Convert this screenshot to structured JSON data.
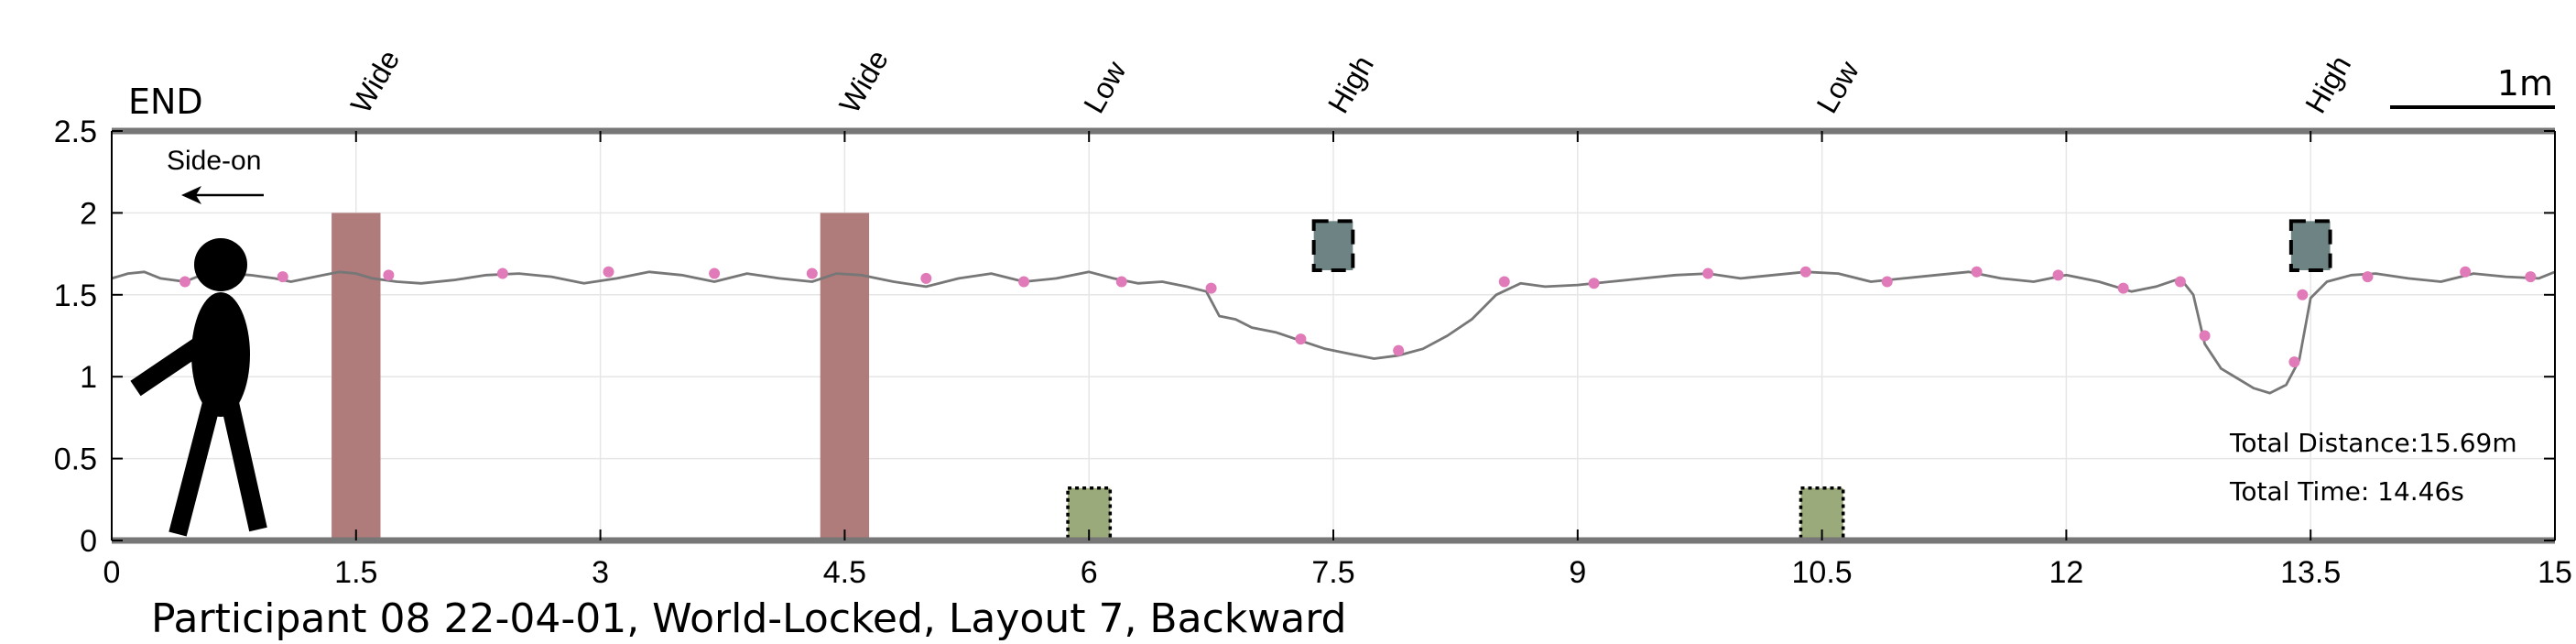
{
  "chart_data": {
    "type": "line",
    "title": "",
    "xlabel": "",
    "ylabel": "",
    "xlim": [
      0,
      15
    ],
    "ylim": [
      0,
      2.5
    ],
    "x_ticks": [
      0,
      1.5,
      3,
      4.5,
      6,
      7.5,
      9,
      10.5,
      12,
      13.5,
      15
    ],
    "x_tick_labels": [
      "0",
      "1.5",
      "3",
      "4.5",
      "6",
      "7.5",
      "9",
      "10.5",
      "12",
      "13.5",
      "15"
    ],
    "y_ticks": [
      0,
      0.5,
      1,
      1.5,
      2,
      2.5
    ],
    "y_tick_labels": [
      "0",
      "0.5",
      "1",
      "1.5",
      "2",
      "2.5"
    ],
    "grid": true,
    "end_label": "END",
    "view_label": "Side-on",
    "scale_bar_label": "1m",
    "caption": "Participant 08 22-04-01, World-Locked, Layout 7, Backward",
    "stats": {
      "distance_text": "Total Distance:15.69m",
      "time_text": "Total Time: 14.46s"
    },
    "obstacle_labels": [
      {
        "x": 1.5,
        "text": "Wide"
      },
      {
        "x": 4.5,
        "text": "Wide"
      },
      {
        "x": 6.0,
        "text": "Low"
      },
      {
        "x": 7.5,
        "text": "High"
      },
      {
        "x": 10.5,
        "text": "Low"
      },
      {
        "x": 13.5,
        "text": "High"
      }
    ],
    "obstacles": [
      {
        "kind": "wide",
        "x0": 1.35,
        "x1": 1.65,
        "y0": 0,
        "y1": 2.0,
        "color": "#b07b7b"
      },
      {
        "kind": "wide",
        "x0": 4.35,
        "x1": 4.65,
        "y0": 0,
        "y1": 2.0,
        "color": "#b07b7b"
      },
      {
        "kind": "low",
        "x0": 5.87,
        "x1": 6.13,
        "y0": 0,
        "y1": 0.32,
        "color": "#9aaa7a"
      },
      {
        "kind": "high",
        "x0": 7.38,
        "x1": 7.62,
        "y0": 1.65,
        "y1": 1.95,
        "color": "#6e8484"
      },
      {
        "kind": "low",
        "x0": 10.37,
        "x1": 10.63,
        "y0": 0,
        "y1": 0.32,
        "color": "#9aaa7a"
      },
      {
        "kind": "high",
        "x0": 13.38,
        "x1": 13.62,
        "y0": 1.65,
        "y1": 1.95,
        "color": "#6e8484"
      }
    ],
    "series": [
      {
        "color": "#777777",
        "x": [
          0,
          0.1,
          0.2,
          0.3,
          0.45,
          0.55,
          0.7,
          0.85,
          1.0,
          1.1,
          1.2,
          1.3,
          1.4,
          1.5,
          1.6,
          1.75,
          1.9,
          2.1,
          2.3,
          2.5,
          2.7,
          2.9,
          3.1,
          3.3,
          3.5,
          3.7,
          3.9,
          4.1,
          4.3,
          4.45,
          4.6,
          4.8,
          5.0,
          5.2,
          5.4,
          5.6,
          5.8,
          6.0,
          6.15,
          6.3,
          6.45,
          6.6,
          6.72,
          6.8,
          6.9,
          7.0,
          7.15,
          7.3,
          7.45,
          7.6,
          7.75,
          7.9,
          8.05,
          8.2,
          8.35,
          8.5,
          8.65,
          8.8,
          9.0,
          9.2,
          9.4,
          9.6,
          9.8,
          10.0,
          10.2,
          10.4,
          10.6,
          10.8,
          11.0,
          11.2,
          11.4,
          11.6,
          11.8,
          12.0,
          12.2,
          12.4,
          12.55,
          12.7,
          12.78,
          12.85,
          12.95,
          13.05,
          13.15,
          13.25,
          13.35,
          13.43,
          13.5,
          13.6,
          13.75,
          13.9,
          14.1,
          14.3,
          14.5,
          14.7,
          14.9,
          15.0
        ],
        "y": [
          1.6,
          1.63,
          1.64,
          1.6,
          1.58,
          1.62,
          1.63,
          1.62,
          1.6,
          1.58,
          1.6,
          1.62,
          1.64,
          1.63,
          1.6,
          1.58,
          1.57,
          1.59,
          1.62,
          1.63,
          1.61,
          1.57,
          1.6,
          1.64,
          1.62,
          1.58,
          1.63,
          1.6,
          1.58,
          1.63,
          1.62,
          1.58,
          1.55,
          1.6,
          1.63,
          1.58,
          1.6,
          1.64,
          1.6,
          1.57,
          1.58,
          1.55,
          1.52,
          1.37,
          1.35,
          1.3,
          1.27,
          1.22,
          1.17,
          1.14,
          1.11,
          1.13,
          1.17,
          1.25,
          1.35,
          1.5,
          1.57,
          1.55,
          1.56,
          1.58,
          1.6,
          1.62,
          1.63,
          1.6,
          1.62,
          1.64,
          1.63,
          1.58,
          1.6,
          1.62,
          1.64,
          1.6,
          1.58,
          1.62,
          1.58,
          1.52,
          1.55,
          1.6,
          1.5,
          1.2,
          1.05,
          0.99,
          0.93,
          0.9,
          0.95,
          1.1,
          1.48,
          1.58,
          1.62,
          1.63,
          1.6,
          1.58,
          1.63,
          1.61,
          1.6,
          1.64
        ]
      }
    ],
    "footsteps": {
      "color": "#e07ab8",
      "x": [
        0.45,
        1.05,
        1.7,
        2.4,
        3.05,
        3.7,
        4.3,
        5.0,
        5.6,
        6.2,
        6.75,
        7.3,
        7.9,
        8.55,
        9.1,
        9.8,
        10.4,
        10.9,
        11.45,
        11.95,
        12.35,
        12.7,
        12.85,
        13.4,
        13.45,
        13.85,
        14.45,
        14.85
      ],
      "y": [
        1.58,
        1.61,
        1.62,
        1.63,
        1.64,
        1.63,
        1.63,
        1.6,
        1.58,
        1.58,
        1.54,
        1.23,
        1.16,
        1.58,
        1.57,
        1.63,
        1.64,
        1.58,
        1.64,
        1.62,
        1.54,
        1.58,
        1.25,
        1.09,
        1.5,
        1.61,
        1.64,
        1.61
      ]
    }
  }
}
